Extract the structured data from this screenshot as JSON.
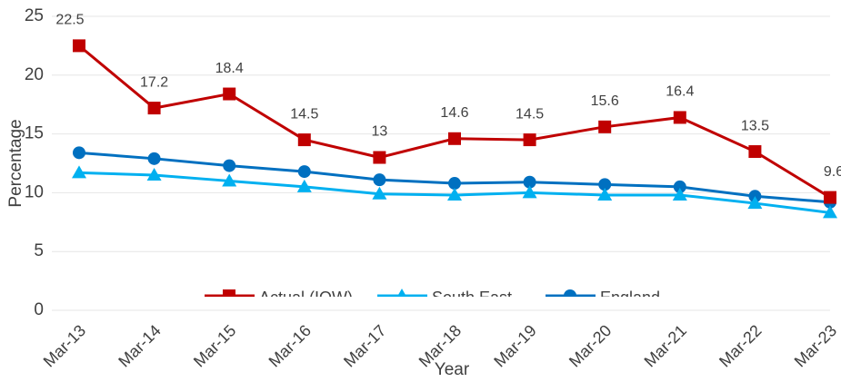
{
  "chart_data": {
    "type": "line",
    "x_label": "Year",
    "y_label": "Percentage",
    "categories": [
      "Mar-13",
      "Mar-14",
      "Mar-15",
      "Mar-16",
      "Mar-17",
      "Mar-18",
      "Mar-19",
      "Mar-20",
      "Mar-21",
      "Mar-22",
      "Mar-23"
    ],
    "series": [
      {
        "name": "Actual (IOW)",
        "color": "#c00000",
        "marker": "square",
        "data_labels": true,
        "values": [
          22.5,
          17.2,
          18.4,
          14.5,
          13,
          14.6,
          14.5,
          15.6,
          16.4,
          13.5,
          9.6
        ]
      },
      {
        "name": "South East",
        "color": "#00b0f0",
        "marker": "triangle",
        "data_labels": false,
        "values": [
          11.7,
          11.5,
          11.0,
          10.5,
          9.9,
          9.8,
          10.0,
          9.8,
          9.8,
          9.1,
          8.3
        ]
      },
      {
        "name": "England",
        "color": "#0070c0",
        "marker": "circle",
        "data_labels": false,
        "values": [
          13.4,
          12.9,
          12.3,
          11.8,
          11.1,
          10.8,
          10.9,
          10.7,
          10.5,
          9.7,
          9.2
        ]
      }
    ],
    "ylim": [
      0,
      25
    ],
    "yticks": [
      0,
      5,
      10,
      15,
      20,
      25
    ],
    "grid": true,
    "legend": "bottom"
  }
}
